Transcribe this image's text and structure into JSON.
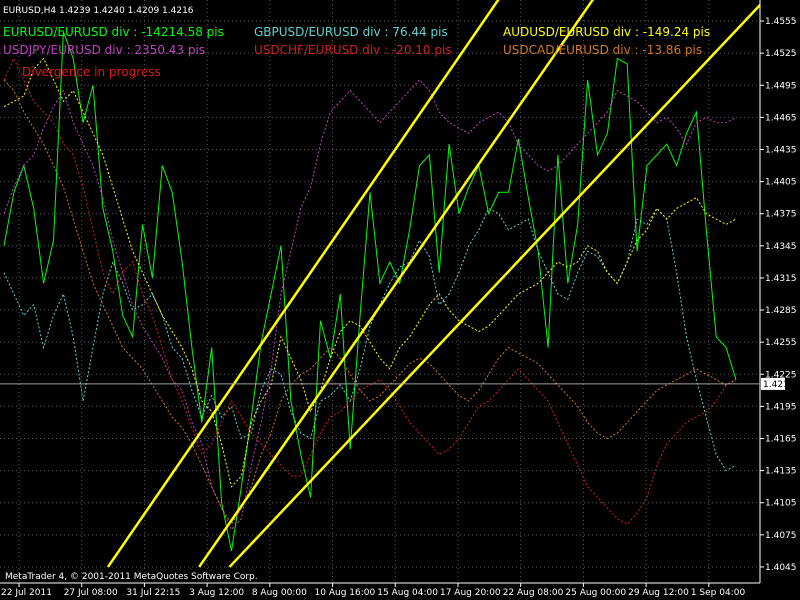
{
  "header": {
    "symbol_info": "EURUSD,H4  1.4239 1.4240 1.4209 1.4216"
  },
  "status_text": "Divergence in progress",
  "copyright": "MetaTrader 4, © 2001-2011 MetaQuotes Software Corp.",
  "divergence_labels": [
    {
      "text": "EURUSD/EURUSD div : -14214.58 pis",
      "color": "#00ff00"
    },
    {
      "text": "GBPUSD/EURUSD div : 76.44 pis",
      "color": "#5fd3d3"
    },
    {
      "text": "AUDUSD/EURUSD div : -149.24 pis",
      "color": "#ffff00"
    },
    {
      "text": "USDJPY/EURUSD div : 2350.43 pis",
      "color": "#c040c0"
    },
    {
      "text": "USDCHF/EURUSD div : -20.10 pis",
      "color": "#d02020"
    },
    {
      "text": "USDCAD/EURUSD div : -13.86 pis",
      "color": "#d07820"
    }
  ],
  "current_price": "1.4216",
  "chart_data": {
    "type": "line",
    "title": "EURUSD,H4",
    "y_ticks": [
      "1.4555",
      "1.4525",
      "1.4495",
      "1.4465",
      "1.4435",
      "1.4405",
      "1.4375",
      "1.4345",
      "1.4315",
      "1.4285",
      "1.4255",
      "1.4225",
      "1.4195",
      "1.4165",
      "1.4135",
      "1.4105",
      "1.4075",
      "1.4045"
    ],
    "ylim": [
      1.403,
      1.457
    ],
    "x_ticks": [
      "22 Jul 2011",
      "27 Jul 08:00",
      "31 Jul 22:15",
      "3 Aug 12:00",
      "8 Aug 00:00",
      "10 Aug 16:00",
      "15 Aug 04:00",
      "17 Aug 20:00",
      "22 Aug 08:00",
      "25 Aug 00:00",
      "29 Aug 12:00",
      "1 Sep 04:00"
    ],
    "grid": true,
    "series": [
      {
        "name": "EURUSD/EURUSD",
        "color": "#00ff00",
        "style": "solid",
        "values": [
          1.4345,
          1.4395,
          1.442,
          1.438,
          1.431,
          1.435,
          1.4545,
          1.452,
          1.446,
          1.4495,
          1.438,
          1.434,
          1.428,
          1.426,
          1.4365,
          1.4315,
          1.442,
          1.4395,
          1.433,
          1.425,
          1.418,
          1.425,
          1.4105,
          1.406,
          1.412,
          1.4185,
          1.4255,
          1.43,
          1.4345,
          1.42,
          1.415,
          1.411,
          1.4275,
          1.424,
          1.43,
          1.4155,
          1.428,
          1.4395,
          1.431,
          1.433,
          1.431,
          1.436,
          1.442,
          1.443,
          1.432,
          1.444,
          1.4375,
          1.44,
          1.442,
          1.4375,
          1.4395,
          1.4395,
          1.4445,
          1.439,
          1.434,
          1.425,
          1.443,
          1.431,
          1.4365,
          1.45,
          1.443,
          1.445,
          1.452,
          1.4515,
          1.434,
          1.442,
          1.443,
          1.444,
          1.442,
          1.445,
          1.447,
          1.436,
          1.426,
          1.425,
          1.422
        ]
      },
      {
        "name": "GBPUSD/EURUSD",
        "color": "#5fd3d3",
        "style": "dashed",
        "values": [
          1.432,
          1.43,
          1.428,
          1.429,
          1.425,
          1.428,
          1.43,
          1.426,
          1.42,
          1.425,
          1.43,
          1.433,
          1.431,
          1.4285,
          1.429,
          1.43,
          1.428,
          1.425,
          1.424,
          1.421,
          1.4185,
          1.4205,
          1.4185,
          1.4195,
          1.4165,
          1.417,
          1.421,
          1.423,
          1.4225,
          1.419,
          1.417,
          1.4165,
          1.42,
          1.4205,
          1.4215,
          1.42,
          1.423,
          1.427,
          1.429,
          1.431,
          1.4325,
          1.433,
          1.435,
          1.4335,
          1.429,
          1.43,
          1.432,
          1.4345,
          1.436,
          1.438,
          1.4375,
          1.436,
          1.4365,
          1.437,
          1.434,
          1.432,
          1.43,
          1.4295,
          1.432,
          1.434,
          1.4335,
          1.432,
          1.431,
          1.433,
          1.437,
          1.4365,
          1.438,
          1.437,
          1.432,
          1.426,
          1.422,
          1.4185,
          1.415,
          1.4135,
          1.414
        ]
      },
      {
        "name": "AUDUSD/EURUSD",
        "color": "#ffff00",
        "style": "dashed",
        "values": [
          1.4475,
          1.448,
          1.4485,
          1.451,
          1.452,
          1.45,
          1.448,
          1.449,
          1.447,
          1.445,
          1.443,
          1.44,
          1.437,
          1.434,
          1.432,
          1.43,
          1.428,
          1.4265,
          1.425,
          1.423,
          1.42,
          1.419,
          1.416,
          1.412,
          1.413,
          1.418,
          1.42,
          1.4215,
          1.426,
          1.424,
          1.422,
          1.419,
          1.421,
          1.424,
          1.4265,
          1.4275,
          1.427,
          1.4255,
          1.424,
          1.423,
          1.425,
          1.426,
          1.4275,
          1.429,
          1.43,
          1.4285,
          1.4275,
          1.427,
          1.4265,
          1.427,
          1.428,
          1.429,
          1.43,
          1.4305,
          1.431,
          1.432,
          1.433,
          1.4325,
          1.433,
          1.4345,
          1.434,
          1.432,
          1.431,
          1.433,
          1.435,
          1.436,
          1.438,
          1.437,
          1.438,
          1.4385,
          1.439,
          1.4375,
          1.437,
          1.4365,
          1.437
        ]
      },
      {
        "name": "USDJPY/EURUSD",
        "color": "#c040c0",
        "style": "dashed",
        "values": [
          1.4375,
          1.44,
          1.442,
          1.443,
          1.4455,
          1.4475,
          1.449,
          1.446,
          1.444,
          1.442,
          1.439,
          1.435,
          1.432,
          1.429,
          1.427,
          1.4255,
          1.424,
          1.422,
          1.421,
          1.418,
          1.416,
          1.412,
          1.41,
          1.408,
          1.409,
          1.414,
          1.418,
          1.423,
          1.43,
          1.434,
          1.438,
          1.44,
          1.444,
          1.447,
          1.448,
          1.449,
          1.448,
          1.447,
          1.446,
          1.447,
          1.448,
          1.449,
          1.45,
          1.449,
          1.447,
          1.446,
          1.4455,
          1.445,
          1.446,
          1.4465,
          1.447,
          1.446,
          1.444,
          1.443,
          1.442,
          1.4415,
          1.442,
          1.443,
          1.444,
          1.445,
          1.446,
          1.447,
          1.449,
          1.4485,
          1.448,
          1.447,
          1.446,
          1.4465,
          1.4455,
          1.444,
          1.446,
          1.4465,
          1.446,
          1.446,
          1.4465
        ]
      },
      {
        "name": "USDCHF/EURUSD",
        "color": "#d02020",
        "style": "dashed",
        "values": [
          1.45,
          1.452,
          1.45,
          1.448,
          1.447,
          1.446,
          1.444,
          1.443,
          1.44,
          1.436,
          1.432,
          1.43,
          1.432,
          1.433,
          1.43,
          1.428,
          1.425,
          1.422,
          1.42,
          1.4175,
          1.415,
          1.416,
          1.418,
          1.42,
          1.4185,
          1.417,
          1.416,
          1.415,
          1.414,
          1.413,
          1.413,
          1.415,
          1.417,
          1.4185,
          1.419,
          1.42,
          1.421,
          1.4215,
          1.422,
          1.421,
          1.4195,
          1.418,
          1.417,
          1.416,
          1.415,
          1.4155,
          1.4165,
          1.418,
          1.4195,
          1.42,
          1.421,
          1.422,
          1.423,
          1.422,
          1.421,
          1.42,
          1.418,
          1.416,
          1.414,
          1.412,
          1.411,
          1.41,
          1.409,
          1.4085,
          1.4095,
          1.411,
          1.414,
          1.416,
          1.417,
          1.418,
          1.4185,
          1.419,
          1.42,
          1.4215,
          1.422
        ]
      },
      {
        "name": "USDCAD/EURUSD",
        "color": "#d07820",
        "style": "dashed",
        "values": [
          1.45,
          1.449,
          1.447,
          1.4455,
          1.444,
          1.442,
          1.44,
          1.437,
          1.434,
          1.431,
          1.429,
          1.427,
          1.425,
          1.424,
          1.423,
          1.4215,
          1.42,
          1.4185,
          1.4175,
          1.416,
          1.414,
          1.412,
          1.41,
          1.4085,
          1.41,
          1.412,
          1.415,
          1.417,
          1.42,
          1.4215,
          1.4225,
          1.423,
          1.424,
          1.425,
          1.424,
          1.4225,
          1.421,
          1.42,
          1.4205,
          1.4215,
          1.4225,
          1.4235,
          1.424,
          1.4235,
          1.4225,
          1.4215,
          1.4205,
          1.42,
          1.421,
          1.4225,
          1.424,
          1.425,
          1.4245,
          1.424,
          1.4235,
          1.4225,
          1.4215,
          1.4205,
          1.4195,
          1.418,
          1.417,
          1.4165,
          1.417,
          1.418,
          1.419,
          1.42,
          1.421,
          1.4215,
          1.422,
          1.4225,
          1.423,
          1.4225,
          1.422,
          1.4215,
          1.422
        ]
      }
    ],
    "channel_lines": [
      {
        "name": "channel-upper",
        "color": "#ffff00",
        "points": [
          [
            0.262,
            1.4045
          ],
          [
            1.0,
            1.48
          ]
        ]
      },
      {
        "name": "channel-middle",
        "color": "#ffff00",
        "points": [
          [
            0.142,
            1.4045
          ],
          [
            1.0,
            1.493
          ]
        ]
      },
      {
        "name": "channel-lower",
        "color": "#ffff00",
        "points": [
          [
            0.302,
            1.4045
          ],
          [
            1.0,
            1.457
          ]
        ]
      }
    ]
  }
}
